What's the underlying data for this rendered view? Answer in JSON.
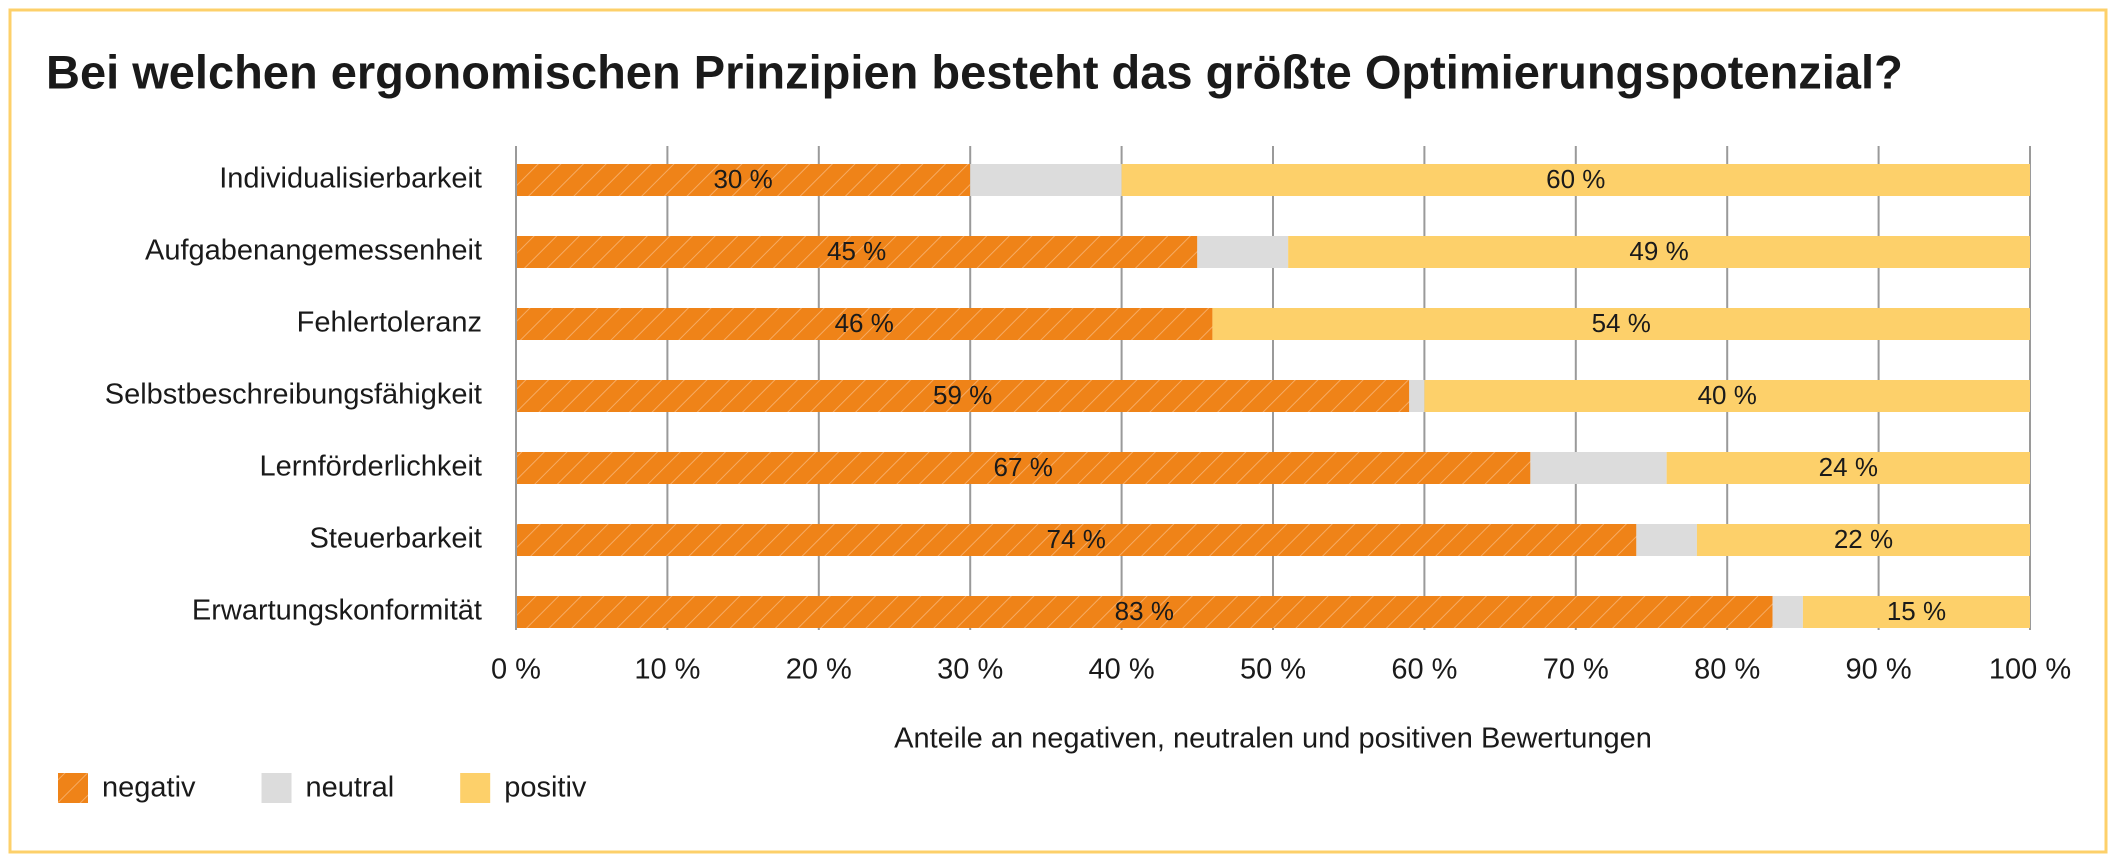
{
  "chart_data": {
    "type": "stacked-bar-horizontal",
    "title": "Bei welchen ergonomischen Prinzipien besteht das größte Optimierungspotenzial?",
    "x_label": "Anteile an negativen, neutralen und positiven Bewertungen",
    "categories": [
      "Individualisierbarkeit",
      "Aufgabenangemessenheit",
      "Fehlertoleranz",
      "Selbstbeschreibungsfähigkeit",
      "Lernförderlichkeit",
      "Steuerbarkeit",
      "Erwartungskonformität"
    ],
    "series": [
      {
        "name": "negativ",
        "color": "#ef8318",
        "hatch": true,
        "values": [
          30,
          45,
          46,
          59,
          67,
          74,
          83
        ],
        "value_labels": [
          "30 %",
          "45 %",
          "46 %",
          "59 %",
          "67 %",
          "74 %",
          "83 %"
        ]
      },
      {
        "name": "neutral",
        "color": "#dcdcdc",
        "values": [
          10,
          6,
          0,
          1,
          9,
          4,
          2
        ]
      },
      {
        "name": "positiv",
        "color": "#fdd06a",
        "values": [
          60,
          49,
          54,
          40,
          24,
          22,
          15
        ],
        "value_labels": [
          "60 %",
          "49 %",
          "54 %",
          "40 %",
          "24 %",
          "22 %",
          "15 %"
        ]
      }
    ],
    "xlim": [
      0,
      100
    ],
    "xticks": [
      {
        "value": 0,
        "label": "0 %"
      },
      {
        "value": 10,
        "label": "10 %"
      },
      {
        "value": 20,
        "label": "20 %"
      },
      {
        "value": 30,
        "label": "30 %"
      },
      {
        "value": 40,
        "label": "40 %"
      },
      {
        "value": 50,
        "label": "50 %"
      },
      {
        "value": 60,
        "label": "60 %"
      },
      {
        "value": 70,
        "label": "70 %"
      },
      {
        "value": 80,
        "label": "80 %"
      },
      {
        "value": 90,
        "label": "90 %"
      },
      {
        "value": 100,
        "label": "100 %"
      }
    ],
    "grid": true,
    "legend": "bottom-left"
  }
}
